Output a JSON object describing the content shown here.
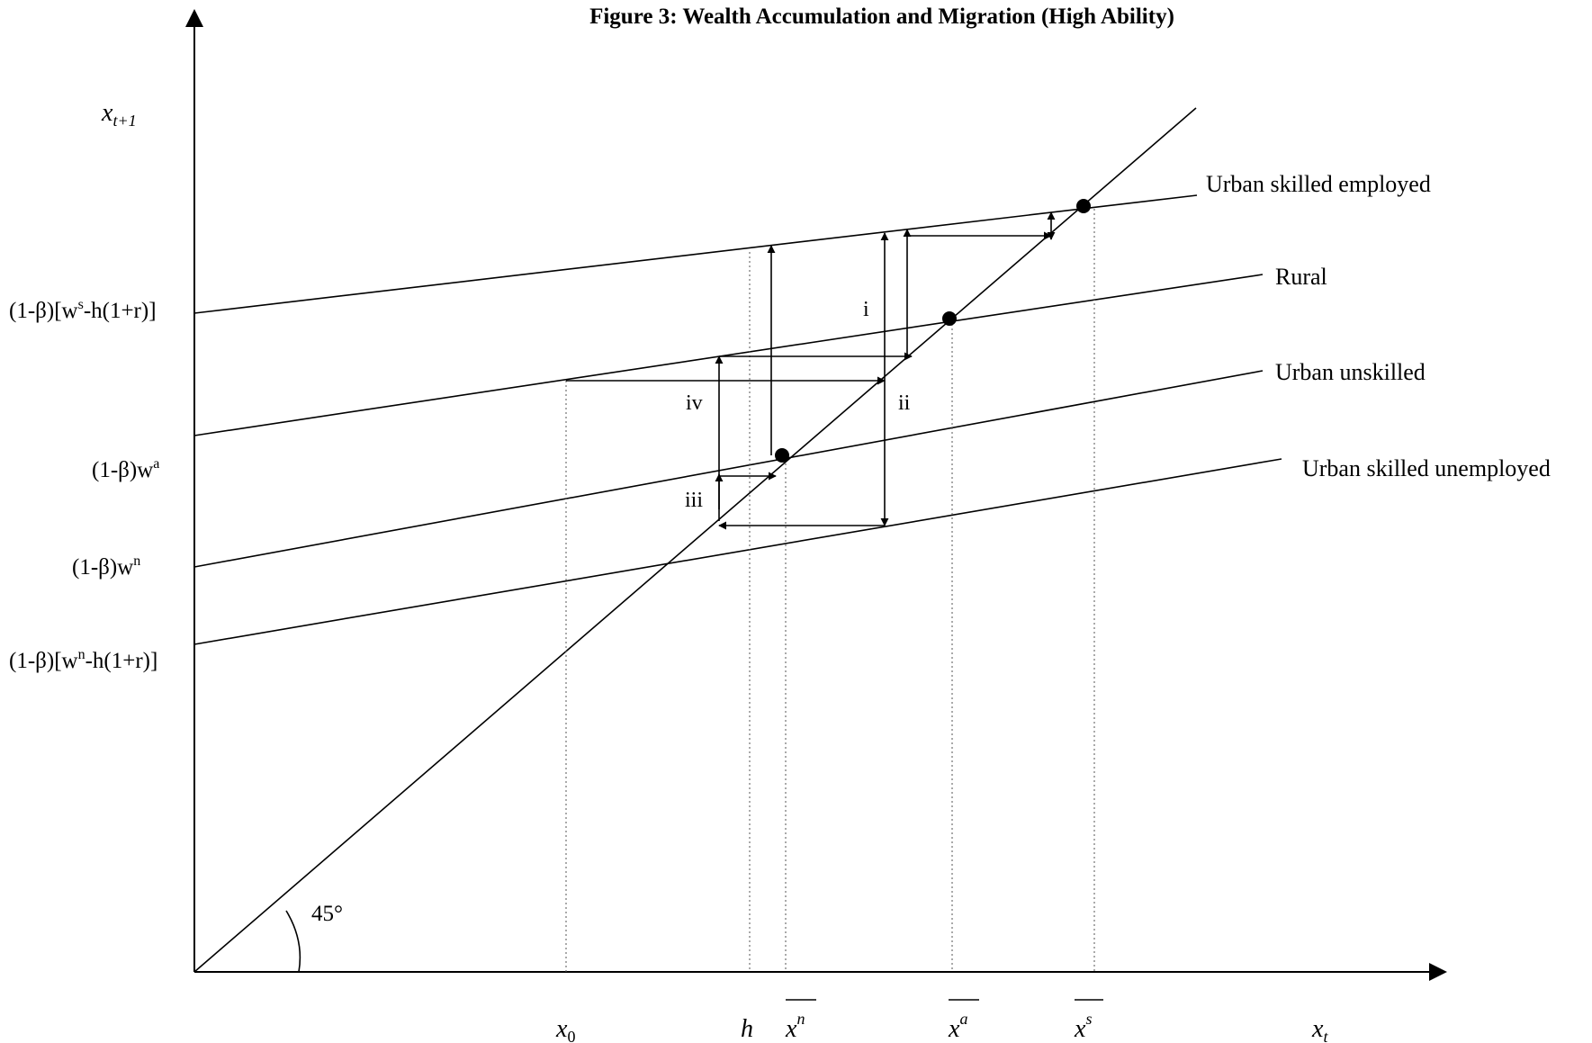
{
  "title": "Figure 3: Wealth Accumulation and Migration (High Ability)",
  "y_axis_label": {
    "base": "x",
    "sub": "t+1"
  },
  "x_axis_label": {
    "base": "x",
    "sub": "t"
  },
  "angle_label": "45°",
  "y_intercepts": {
    "skilled_employed": {
      "pre": "(1-β)[w",
      "sup": "s",
      "post": "-h(1+r)]"
    },
    "rural": {
      "pre": "(1-β)w",
      "sup": "a",
      "post": ""
    },
    "unskilled": {
      "pre": "(1-β)w",
      "sup": "n",
      "post": ""
    },
    "skilled_unemployed": {
      "pre": "(1-β)[w",
      "sup": "n",
      "post": "-h(1+r)]"
    }
  },
  "lines": {
    "skilled_employed": "Urban skilled employed",
    "rural": "Rural",
    "unskilled": "Urban unskilled",
    "skilled_unemployed": "Urban skilled unemployed"
  },
  "x_ticks": {
    "x0": {
      "base": "x",
      "sub": "0"
    },
    "h": "h",
    "xn": {
      "base": "x",
      "sup": "n"
    },
    "xa": {
      "base": "x",
      "sup": "a"
    },
    "xs": {
      "base": "x",
      "sup": "s"
    }
  },
  "path_labels": {
    "i": "i",
    "ii": "ii",
    "iii": "iii",
    "iv": "iv"
  }
}
